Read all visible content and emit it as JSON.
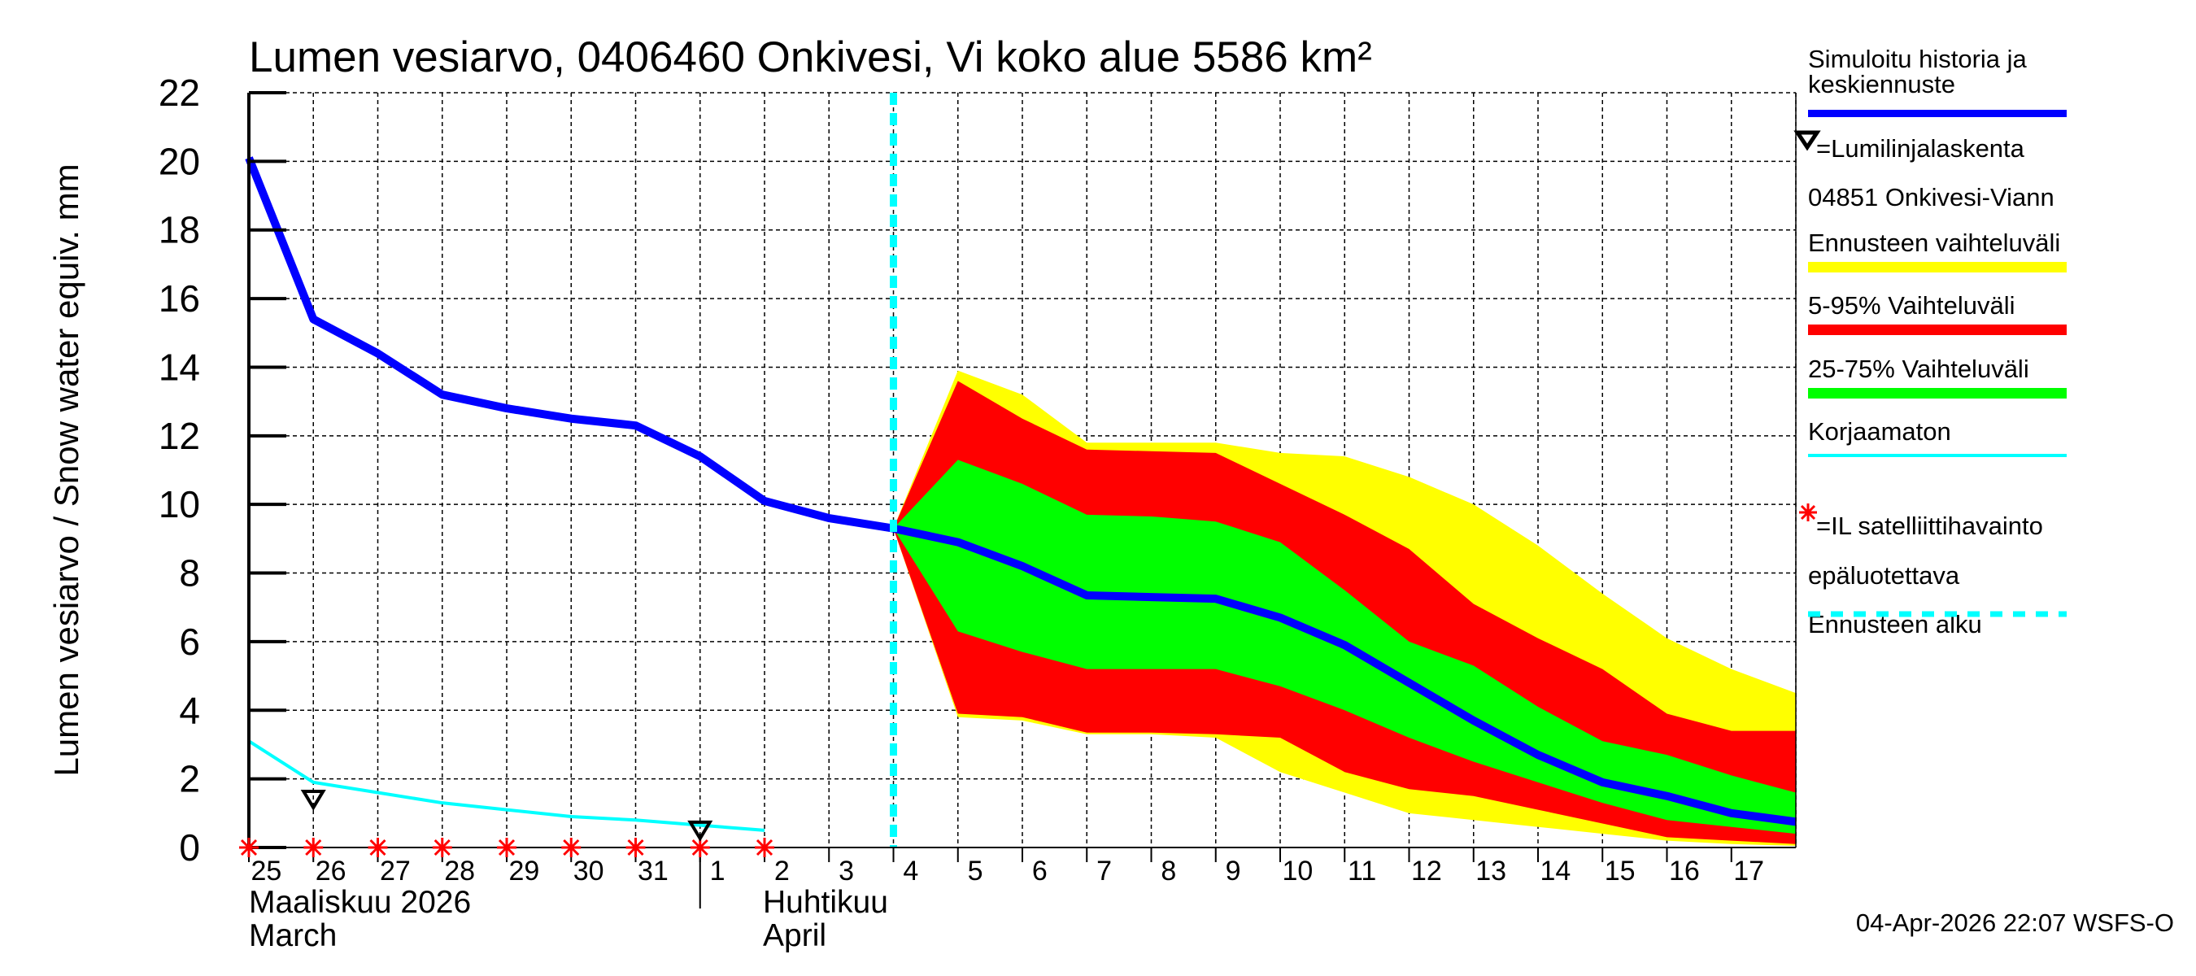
{
  "chart_data": {
    "type": "area",
    "title": "Lumen vesiarvo, 0406460 Onkivesi, Vi koko alue 5586 km²",
    "ylabel": "Lumen vesiarvo / Snow water equiv.    mm",
    "ylim": [
      0,
      22
    ],
    "yticks": [
      0,
      2,
      4,
      6,
      8,
      10,
      12,
      14,
      16,
      18,
      20,
      22
    ],
    "xlim": [
      "2026-03-25",
      "2026-04-18"
    ],
    "xtick_labels": [
      "25",
      "26",
      "27",
      "28",
      "29",
      "30",
      "31",
      "1",
      "2",
      "3",
      "4",
      "5",
      "6",
      "7",
      "8",
      "9",
      "10",
      "11",
      "12",
      "13",
      "14",
      "15",
      "16",
      "17"
    ],
    "month_labels": [
      {
        "line1": "Maaliskuu 2026",
        "line2": "March"
      },
      {
        "line1": "Huhtikuu",
        "line2": "April"
      }
    ],
    "grid": true,
    "legend_position": "right",
    "forecast_start": "2026-04-04",
    "dates": [
      "03-25",
      "03-26",
      "03-27",
      "03-28",
      "03-29",
      "03-30",
      "03-31",
      "04-01",
      "04-02",
      "04-03",
      "04-04",
      "04-05",
      "04-06",
      "04-07",
      "04-08",
      "04-09",
      "04-10",
      "04-11",
      "04-12",
      "04-13",
      "04-14",
      "04-15",
      "04-16",
      "04-17",
      "04-18"
    ],
    "simulated": [
      20.1,
      15.4,
      14.4,
      13.2,
      12.8,
      12.5,
      12.3,
      11.4,
      10.1,
      9.6,
      9.3,
      8.9,
      8.2,
      7.35,
      7.3,
      7.25,
      6.7,
      5.9,
      4.8,
      3.7,
      2.7,
      1.9,
      1.5,
      1.0,
      0.75
    ],
    "uncorrected": [
      3.1,
      1.9,
      1.6,
      1.3,
      1.1,
      0.9,
      0.8,
      0.65,
      0.5
    ],
    "forecast_dates": [
      "04-04",
      "04-05",
      "04-06",
      "04-07",
      "04-08",
      "04-09",
      "04-10",
      "04-11",
      "04-12",
      "04-13",
      "04-14",
      "04-15",
      "04-16",
      "04-17",
      "04-18"
    ],
    "range_upper": [
      9.3,
      13.9,
      13.2,
      11.8,
      11.8,
      11.8,
      11.5,
      11.4,
      10.8,
      10.0,
      8.8,
      7.4,
      6.1,
      5.2,
      4.5
    ],
    "range_lower": [
      9.3,
      3.8,
      3.7,
      3.3,
      3.3,
      3.2,
      2.2,
      1.6,
      1.0,
      0.8,
      0.6,
      0.4,
      0.2,
      0.1,
      0.05
    ],
    "p95": [
      9.3,
      13.6,
      12.5,
      11.6,
      11.55,
      11.5,
      10.6,
      9.7,
      8.7,
      7.1,
      6.1,
      5.2,
      3.9,
      3.4,
      3.4
    ],
    "p5": [
      9.3,
      3.9,
      3.8,
      3.35,
      3.35,
      3.3,
      3.2,
      2.2,
      1.7,
      1.5,
      1.1,
      0.7,
      0.3,
      0.2,
      0.1
    ],
    "p75": [
      9.3,
      11.3,
      10.6,
      9.7,
      9.65,
      9.5,
      8.9,
      7.5,
      6.0,
      5.3,
      4.1,
      3.1,
      2.7,
      2.1,
      1.6
    ],
    "p25": [
      9.3,
      6.3,
      5.7,
      5.2,
      5.2,
      5.2,
      4.7,
      4.0,
      3.2,
      2.5,
      1.9,
      1.3,
      0.8,
      0.6,
      0.4
    ],
    "snowline_obs": [
      {
        "date": "03-26",
        "value": 1.4
      },
      {
        "date": "04-01",
        "value": 0.5
      }
    ],
    "satellite_obs_dates": [
      "03-25",
      "03-26",
      "03-27",
      "03-28",
      "03-29",
      "03-30",
      "03-31",
      "04-01",
      "04-02"
    ],
    "colors": {
      "simulated": "#0000ff",
      "range": "#ffff00",
      "p5_95": "#ff0000",
      "p25_75": "#00ff00",
      "uncorrected": "#00ffff",
      "forecast_start": "#00ffff",
      "satellite": "#ff0000"
    }
  },
  "legend": {
    "simulated_line1": "Simuloitu historia ja",
    "simulated_line2": "keskiennuste",
    "snowline": "=Lumilinjalaskenta",
    "snowline_station": "04851 Onkivesi-Viann",
    "range": "Ennusteen vaihteluväli",
    "p5_95": "5-95% Vaihteluväli",
    "p25_75": "25-75% Vaihteluväli",
    "uncorrected": "Korjaamaton",
    "satellite": "=IL satelliittihavainto",
    "satellite2": "epäluotettava",
    "forecast_start": "Ennusteen alku"
  },
  "footer": "04-Apr-2026 22:07 WSFS-O"
}
